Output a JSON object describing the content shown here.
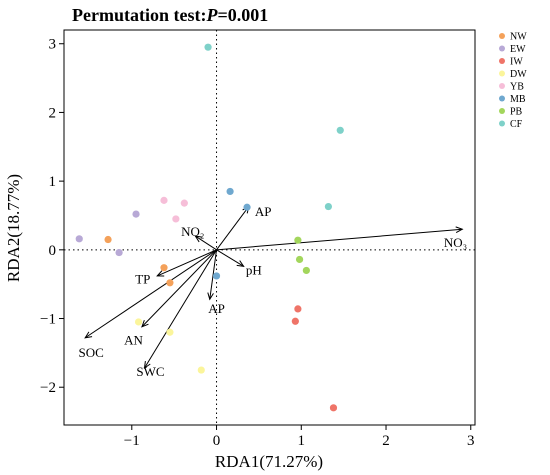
{
  "chart_data": {
    "type": "scatter",
    "title": {
      "prefix": "Permutation test:",
      "italic": "P",
      "suffix": "=0.001"
    },
    "xlabel": "RDA1(71.27%)",
    "ylabel": "RDA2(18.77%)",
    "xlim": [
      -1.8,
      3.05
    ],
    "ylim": [
      -2.55,
      3.2
    ],
    "xticks": [
      -1,
      0,
      1,
      2,
      3
    ],
    "yticks": [
      -2,
      -1,
      0,
      1,
      2,
      3
    ],
    "reference_lines": {
      "x": 0,
      "y": 0,
      "style": "dotted"
    },
    "legend_position": "top-right",
    "series": [
      {
        "name": "NW",
        "color": "#f4a15a",
        "points": [
          [
            -1.28,
            0.15
          ],
          [
            -0.62,
            -0.26
          ],
          [
            -0.55,
            -0.48
          ]
        ]
      },
      {
        "name": "EW",
        "color": "#b8a9d6",
        "points": [
          [
            -1.62,
            0.16
          ],
          [
            -0.95,
            0.52
          ],
          [
            -1.15,
            -0.04
          ]
        ]
      },
      {
        "name": "IW",
        "color": "#ef7468",
        "points": [
          [
            0.96,
            -0.86
          ],
          [
            0.93,
            -1.04
          ],
          [
            1.38,
            -2.3
          ]
        ]
      },
      {
        "name": "DW",
        "color": "#fbf59b",
        "points": [
          [
            -0.55,
            -1.2
          ],
          [
            -0.92,
            -1.05
          ],
          [
            -0.18,
            -1.75
          ]
        ]
      },
      {
        "name": "YB",
        "color": "#f6bed8",
        "points": [
          [
            -0.62,
            0.72
          ],
          [
            -0.38,
            0.68
          ],
          [
            -0.48,
            0.45
          ]
        ]
      },
      {
        "name": "MB",
        "color": "#6fa8cf",
        "points": [
          [
            0.36,
            0.62
          ],
          [
            0.16,
            0.85
          ],
          [
            0.0,
            -0.38
          ]
        ]
      },
      {
        "name": "PB",
        "color": "#a3d65c",
        "points": [
          [
            0.96,
            0.14
          ],
          [
            0.98,
            -0.14
          ],
          [
            1.06,
            -0.3
          ]
        ]
      },
      {
        "name": "CF",
        "color": "#7ed1c9",
        "points": [
          [
            1.46,
            1.74
          ],
          [
            1.32,
            0.63
          ],
          [
            -0.1,
            2.95
          ]
        ]
      }
    ],
    "arrows": [
      {
        "label": "NO₃",
        "end": [
          2.9,
          0.3
        ],
        "label_at": [
          2.82,
          0.1
        ]
      },
      {
        "label": "AP",
        "end": [
          0.38,
          0.63
        ],
        "label_at": [
          0.55,
          0.55
        ]
      },
      {
        "label": "NO₂",
        "end": [
          -0.25,
          0.2
        ],
        "label_at": [
          -0.28,
          0.26
        ]
      },
      {
        "label": "pH",
        "end": [
          0.32,
          -0.24
        ],
        "label_at": [
          0.44,
          -0.3
        ]
      },
      {
        "label": "AP",
        "end": [
          -0.08,
          -0.72
        ],
        "label_at": [
          0.0,
          -0.86
        ]
      },
      {
        "label": "TP",
        "end": [
          -0.7,
          -0.38
        ],
        "label_at": [
          -0.87,
          -0.43
        ]
      },
      {
        "label": "SOC",
        "end": [
          -1.55,
          -1.28
        ],
        "label_at": [
          -1.48,
          -1.5
        ]
      },
      {
        "label": "AN",
        "end": [
          -0.88,
          -1.12
        ],
        "label_at": [
          -0.98,
          -1.32
        ]
      },
      {
        "label": "SWC",
        "end": [
          -0.85,
          -1.72
        ],
        "label_at": [
          -0.78,
          -1.78
        ]
      }
    ]
  }
}
